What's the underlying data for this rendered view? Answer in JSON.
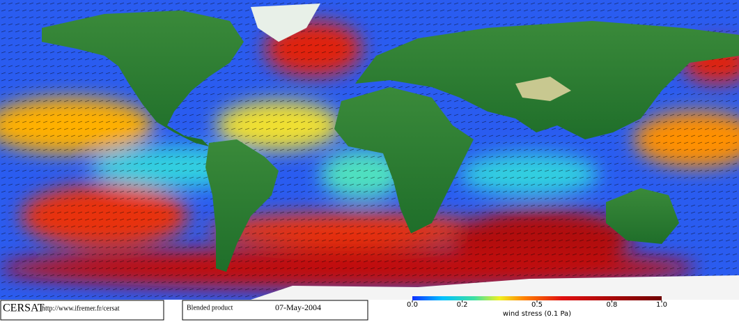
{
  "footer": {
    "logo": "CERSAT",
    "url": "http://www.ifremer.fr/cersat",
    "product": "Blended product",
    "date": "07-May-2004"
  },
  "colorbar": {
    "lim": [
      0,
      1
    ],
    "ticks": [
      {
        "value": 0,
        "label": "0.0"
      },
      0.2,
      0.5,
      0.8,
      {
        "value": 1,
        "label": "1.0"
      }
    ],
    "label": "wind stress (0.1 Pa)"
  }
}
